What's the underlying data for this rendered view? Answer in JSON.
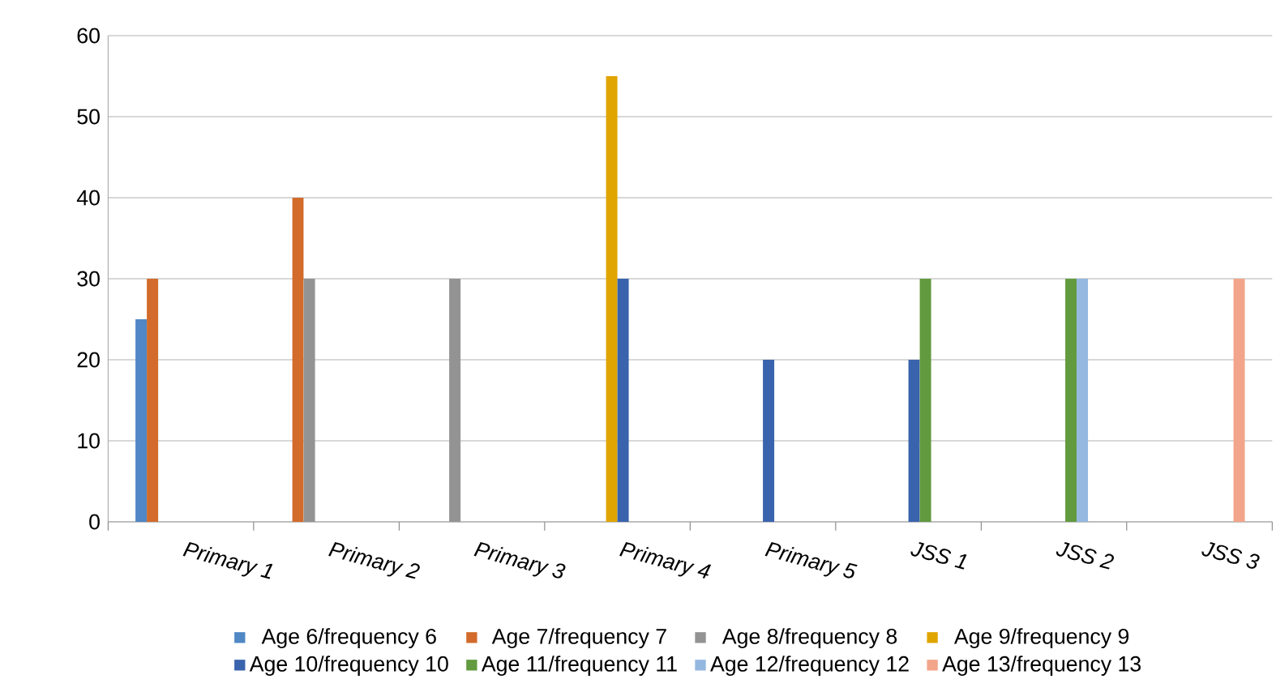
{
  "chart_data": {
    "type": "bar",
    "categories": [
      "Primary 1",
      "Primary 2",
      "Primary 3",
      "Primary 4",
      "Primary 5",
      "JSS 1",
      "JSS 2",
      "JSS 3"
    ],
    "series": [
      {
        "name": "Age 6/frequency 6",
        "color": "#5087c4",
        "values": [
          25,
          null,
          null,
          null,
          null,
          null,
          null,
          null
        ]
      },
      {
        "name": "Age 7/frequency 7",
        "color": "#d26b2b",
        "values": [
          30,
          40,
          null,
          null,
          null,
          null,
          null,
          null
        ]
      },
      {
        "name": "Age 8/frequency 8",
        "color": "#939393",
        "values": [
          null,
          30,
          30,
          null,
          null,
          null,
          null,
          null
        ]
      },
      {
        "name": "Age 9/frequency 9",
        "color": "#e0a500",
        "values": [
          null,
          null,
          null,
          55,
          null,
          null,
          null,
          null
        ]
      },
      {
        "name": "Age 10/frequency 10",
        "color": "#3a63ad",
        "values": [
          null,
          null,
          null,
          30,
          20,
          20,
          null,
          null
        ]
      },
      {
        "name": "Age 11/frequency 11",
        "color": "#629a3f",
        "values": [
          null,
          null,
          null,
          null,
          null,
          30,
          30,
          null
        ]
      },
      {
        "name": "Age 12/frequency 12",
        "color": "#94b8e0",
        "values": [
          null,
          null,
          null,
          null,
          null,
          null,
          30,
          null
        ]
      },
      {
        "name": "Age 13/frequency 13",
        "color": "#f2a58a",
        "values": [
          null,
          null,
          null,
          null,
          null,
          null,
          null,
          30
        ]
      }
    ],
    "ylim": [
      0,
      60
    ],
    "yticks": [
      0,
      10,
      20,
      30,
      40,
      50,
      60
    ],
    "grid": "y",
    "legend": "bottom"
  }
}
